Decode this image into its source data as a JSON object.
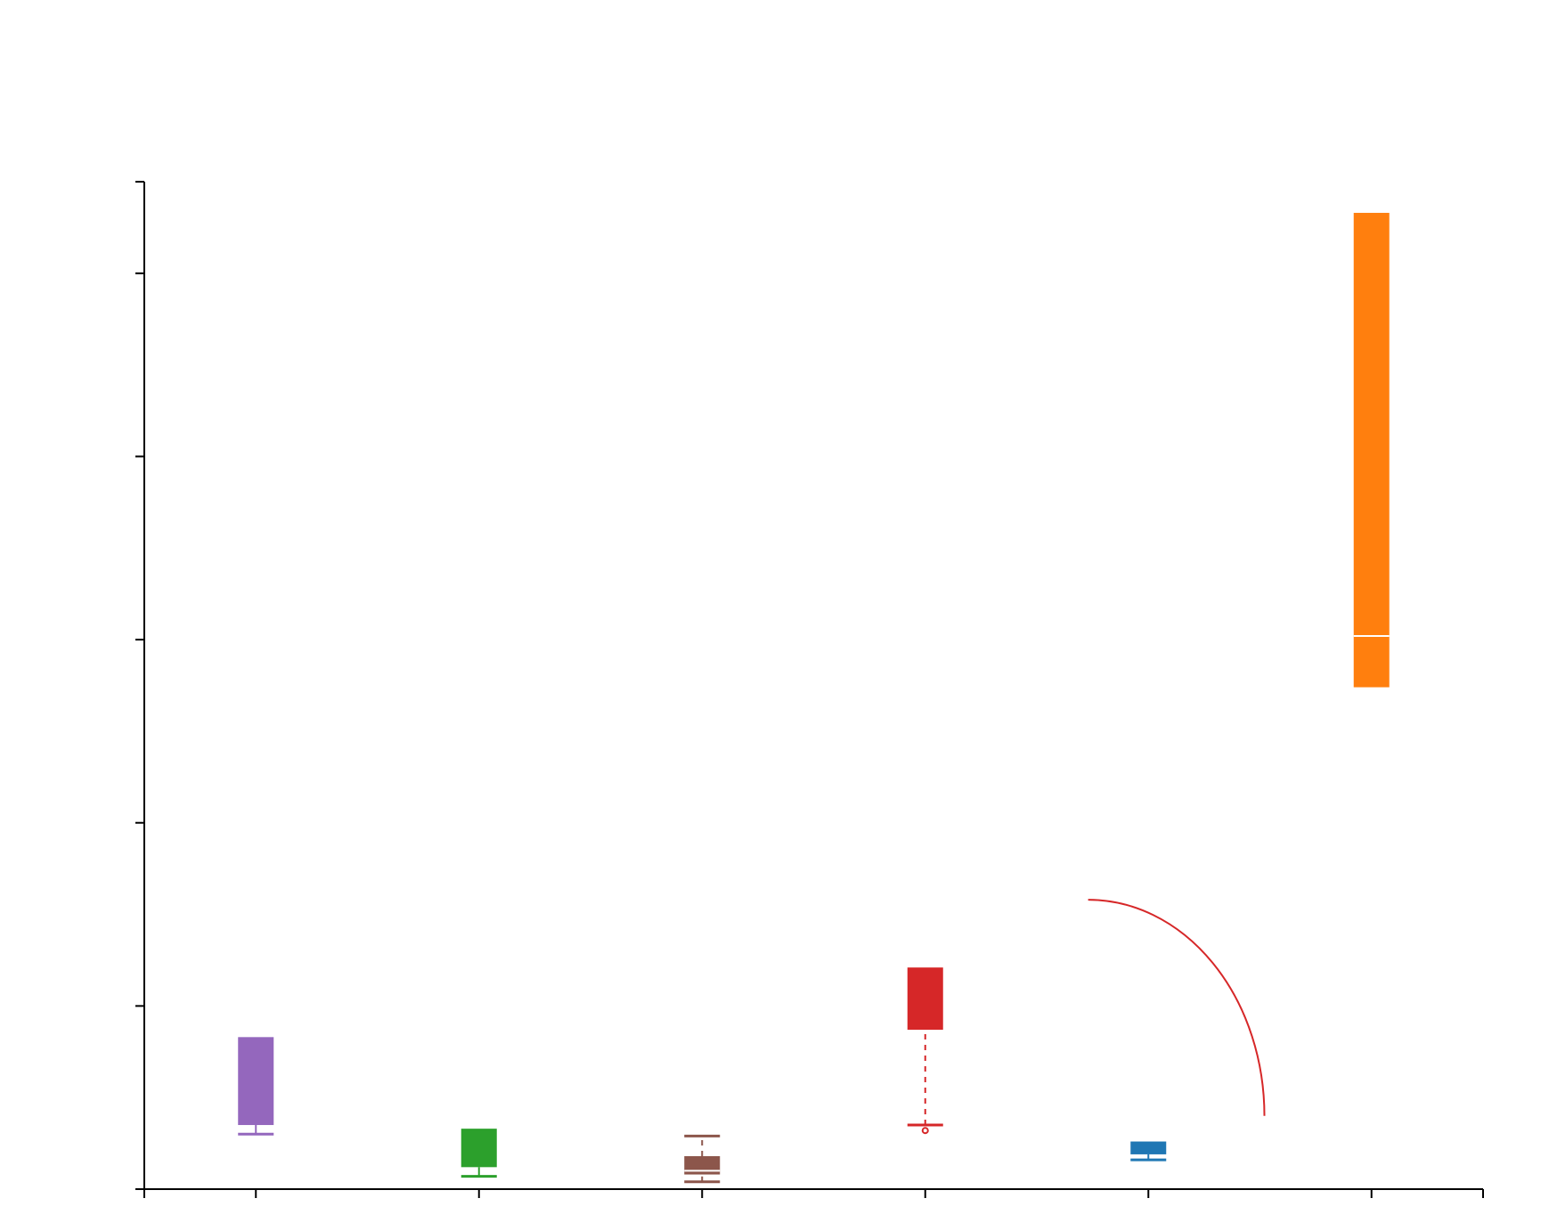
{
  "chart_data": {
    "type": "box",
    "title": "",
    "xlabel": "",
    "ylabel": "",
    "categories": [
      "",
      "",
      "",
      "",
      "",
      ""
    ],
    "ylim": [
      0,
      5.5
    ],
    "y_ticks": [
      0,
      1,
      2,
      3,
      4,
      5,
      5.5
    ],
    "x_ticks_extra": [
      "left-edge",
      "right-edge"
    ],
    "grid": false,
    "legend": "none",
    "boxes": [
      {
        "color": "#9467bd",
        "whisker_low": 0.3,
        "q1": 0.35,
        "median": 0.35,
        "q3": 0.83,
        "whisker_high": 0.83,
        "whisker_style": "solid",
        "outliers": []
      },
      {
        "color": "#2ca02c",
        "whisker_low": 0.07,
        "q1": 0.12,
        "median": 0.12,
        "q3": 0.33,
        "whisker_high": 0.33,
        "whisker_style": "solid",
        "outliers": []
      },
      {
        "color": "#8c564b",
        "whisker_low": 0.04,
        "q1": 0.08,
        "median": 0.1,
        "q3": 0.18,
        "whisker_high": 0.29,
        "whisker_style": "dashed",
        "outliers": []
      },
      {
        "color": "#d62728",
        "whisker_low": 0.35,
        "q1": 0.87,
        "median": 0.87,
        "q3": 1.21,
        "whisker_high": 1.21,
        "whisker_style": "dashed",
        "outliers": [
          0.32
        ]
      },
      {
        "color": "#1f77b4",
        "whisker_low": 0.16,
        "q1": 0.19,
        "median": 0.19,
        "q3": 0.26,
        "whisker_high": 0.26,
        "whisker_style": "solid",
        "outliers": []
      },
      {
        "color": "#ff7f0e",
        "whisker_low": 2.74,
        "q1": 2.74,
        "median": 3.02,
        "q3": 5.33,
        "whisker_high": 5.33,
        "whisker_style": "solid",
        "outliers": []
      }
    ],
    "annotation_arc": {
      "color": "#d62728",
      "from": [
        4.23,
        1.58
      ],
      "to": [
        5.02,
        0.4
      ]
    }
  }
}
